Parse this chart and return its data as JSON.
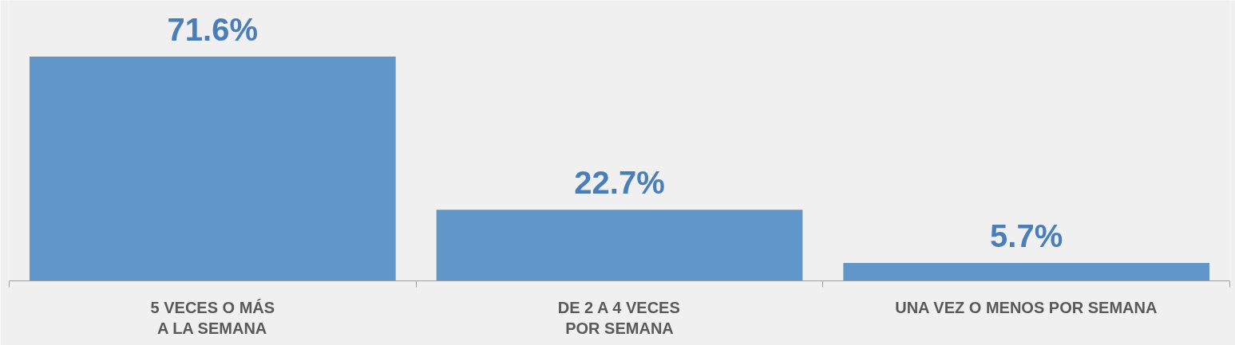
{
  "chart_data": {
    "type": "bar",
    "categories": [
      "5 VECES O MÁS\nA LA SEMANA",
      "DE 2 A 4 VECES\nPOR SEMANA",
      "UNA VEZ O MENOS POR SEMANA"
    ],
    "values": [
      71.6,
      22.7,
      5.7
    ],
    "value_labels": [
      "71.6%",
      "22.7%",
      "5.7%"
    ],
    "color": "#6096c8",
    "grid": false
  }
}
